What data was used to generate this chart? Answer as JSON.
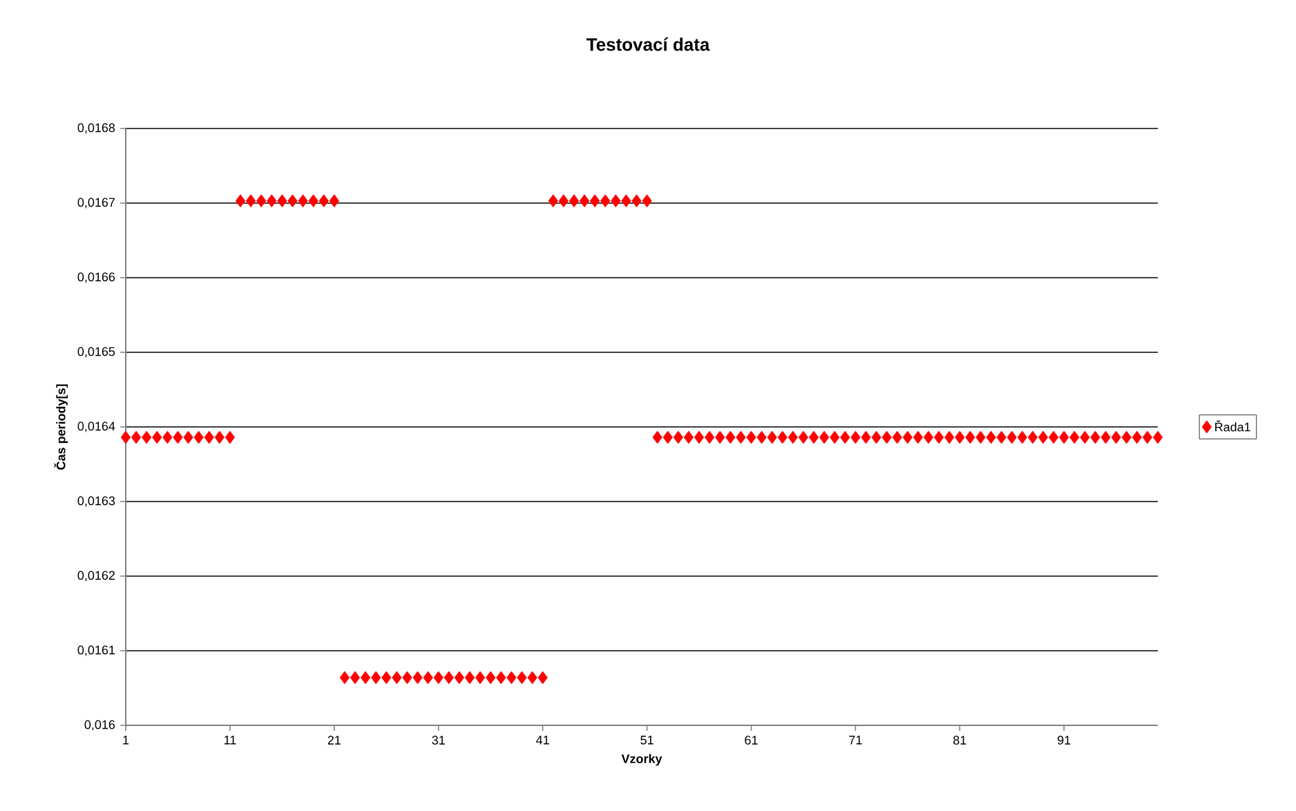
{
  "chart_data": {
    "type": "scatter",
    "title": "Testovací data",
    "xlabel": "Vzorky",
    "ylabel": "Čas periody[s]",
    "categories": [
      "1",
      null,
      null,
      null,
      null,
      null,
      null,
      null,
      null,
      null,
      "11",
      null,
      null,
      null,
      null,
      null,
      null,
      null,
      null,
      null,
      "21",
      null,
      null,
      null,
      null,
      null,
      null,
      null,
      null,
      null,
      "31",
      null,
      null,
      null,
      null,
      null,
      null,
      null,
      null,
      null,
      "41",
      null,
      null,
      null,
      null,
      null,
      null,
      null,
      null,
      null,
      "51",
      null,
      null,
      null,
      null,
      null,
      null,
      null,
      null,
      null,
      "61",
      null,
      null,
      null,
      null,
      null,
      null,
      null,
      null,
      null,
      "71",
      null,
      null,
      null,
      null,
      null,
      null,
      null,
      null,
      null,
      "81",
      null,
      null,
      null,
      null,
      null,
      null,
      null,
      null,
      null,
      "91",
      null,
      null,
      null,
      null,
      null,
      null,
      null,
      null,
      null
    ],
    "series": [
      {
        "name": "Řada1",
        "color": "#ff0000",
        "values": [
          0.016386,
          0.016386,
          0.016386,
          0.016386,
          0.016386,
          0.016386,
          0.016386,
          0.016386,
          0.016386,
          0.016386,
          0.016386,
          0.016703,
          0.016703,
          0.016703,
          0.016703,
          0.016703,
          0.016703,
          0.016703,
          0.016703,
          0.016703,
          0.016703,
          0.016064,
          0.016064,
          0.016064,
          0.016064,
          0.016064,
          0.016064,
          0.016064,
          0.016064,
          0.016064,
          0.016064,
          0.016064,
          0.016064,
          0.016064,
          0.016064,
          0.016064,
          0.016064,
          0.016064,
          0.016064,
          0.016064,
          0.016064,
          0.016703,
          0.016703,
          0.016703,
          0.016703,
          0.016703,
          0.016703,
          0.016703,
          0.016703,
          0.016703,
          0.016703,
          0.016386,
          0.016386,
          0.016386,
          0.016386,
          0.016386,
          0.016386,
          0.016386,
          0.016386,
          0.016386,
          0.016386,
          0.016386,
          0.016386,
          0.016386,
          0.016386,
          0.016386,
          0.016386,
          0.016386,
          0.016386,
          0.016386,
          0.016386,
          0.016386,
          0.016386,
          0.016386,
          0.016386,
          0.016386,
          0.016386,
          0.016386,
          0.016386,
          0.016386,
          0.016386,
          0.016386,
          0.016386,
          0.016386,
          0.016386,
          0.016386,
          0.016386,
          0.016386,
          0.016386,
          0.016386,
          0.016386,
          0.016386,
          0.016386,
          0.016386,
          0.016386,
          0.016386,
          0.016386,
          0.016386,
          0.016386,
          0.016386
        ]
      }
    ],
    "ylim": [
      0.016,
      0.0168
    ],
    "yticks": [
      {
        "value": 0.016,
        "label": "0,016"
      },
      {
        "value": 0.0161,
        "label": "0,0161"
      },
      {
        "value": 0.0162,
        "label": "0,0162"
      },
      {
        "value": 0.0163,
        "label": "0,0163"
      },
      {
        "value": 0.0164,
        "label": "0,0164"
      },
      {
        "value": 0.0165,
        "label": "0,0165"
      },
      {
        "value": 0.0166,
        "label": "0,0166"
      },
      {
        "value": 0.0167,
        "label": "0,0167"
      },
      {
        "value": 0.0168,
        "label": "0,0168"
      }
    ],
    "grid": "y",
    "legend": "right",
    "marker": "diamond"
  }
}
